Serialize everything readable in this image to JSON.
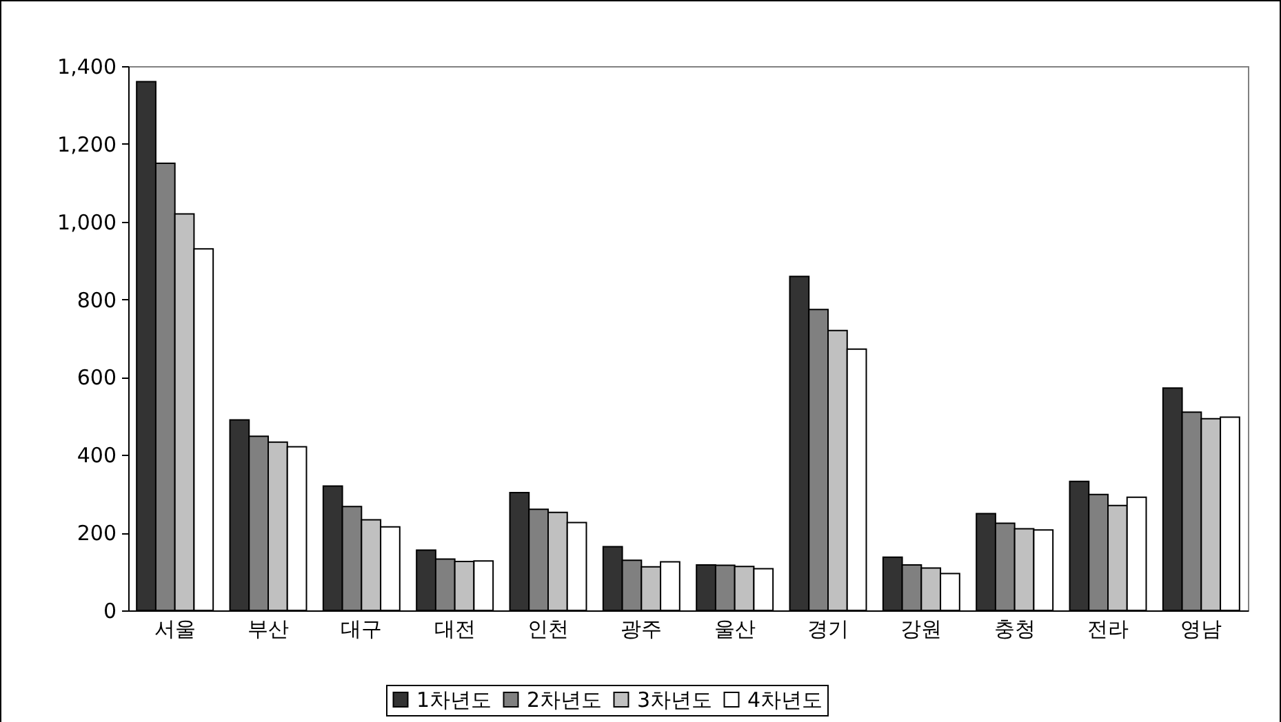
{
  "chart_data": {
    "type": "bar",
    "categories": [
      "서울",
      "부산",
      "대구",
      "대전",
      "인천",
      "광주",
      "울산",
      "경기",
      "강원",
      "충청",
      "전라",
      "영남"
    ],
    "series": [
      {
        "name": "1차년도",
        "color": "#333333",
        "values": [
          1360,
          490,
          320,
          155,
          303,
          164,
          117,
          859,
          137,
          249,
          332,
          572
        ]
      },
      {
        "name": "2차년도",
        "color": "#808080",
        "values": [
          1150,
          448,
          267,
          132,
          260,
          129,
          116,
          774,
          117,
          224,
          298,
          510
        ]
      },
      {
        "name": "3차년도",
        "color": "#c0c0c0",
        "values": [
          1020,
          433,
          233,
          126,
          252,
          112,
          113,
          720,
          109,
          210,
          270,
          493
        ]
      },
      {
        "name": "4차년도",
        "color": "#ffffff",
        "values": [
          930,
          421,
          215,
          127,
          226,
          125,
          107,
          672,
          95,
          207,
          291,
          497
        ]
      }
    ],
    "ylim": [
      0,
      1400
    ],
    "yticks": [
      0,
      200,
      400,
      600,
      800,
      {
        "value": 1000,
        "label": "1,000"
      },
      {
        "value": 1200,
        "label": "1,200"
      },
      {
        "value": 1400,
        "label": "1,400"
      }
    ],
    "grid": false,
    "legend": "bottom"
  }
}
